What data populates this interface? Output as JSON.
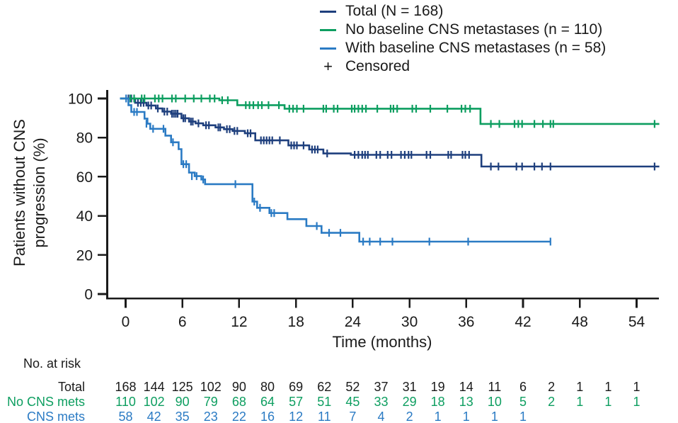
{
  "chart_data": {
    "type": "line",
    "subtype": "kaplan-meier-step",
    "title": "",
    "xlabel": "Time (months)",
    "ylabel": "Patients without CNS progression (%)",
    "ylabel_lines": [
      "Patients without CNS",
      "progression (%)"
    ],
    "xlim": [
      0,
      56.5
    ],
    "ylim": [
      0,
      100
    ],
    "xticks": [
      0,
      6,
      12,
      18,
      24,
      30,
      36,
      42,
      48,
      54
    ],
    "yticks": [
      100,
      80,
      60,
      40,
      20,
      0
    ],
    "grid": false,
    "legend_position": "top-right",
    "axis_color": "#1a1a1a",
    "censored_label": "Censored",
    "censored_marker": "+",
    "series": [
      {
        "name": "Total (N = 168)",
        "color": "#1e3f7d",
        "steps": [
          [
            0,
            100
          ],
          [
            1.0,
            97.8
          ],
          [
            2.2,
            96.4
          ],
          [
            3.2,
            94.9
          ],
          [
            3.9,
            93.3
          ],
          [
            4.8,
            92.2
          ],
          [
            5.9,
            89.9
          ],
          [
            6.7,
            88.2
          ],
          [
            7.4,
            87.3
          ],
          [
            8.2,
            86.3
          ],
          [
            9.5,
            85.2
          ],
          [
            10.4,
            84.3
          ],
          [
            11.3,
            83.4
          ],
          [
            12.6,
            82.2
          ],
          [
            13.7,
            78.6
          ],
          [
            17.2,
            76.0
          ],
          [
            19.4,
            73.9
          ],
          [
            20.9,
            71.9
          ],
          [
            23.8,
            71.2
          ],
          [
            37.6,
            65.2
          ],
          [
            56.4,
            65.2
          ]
        ],
        "censors": [
          [
            0.3,
            100
          ],
          [
            0.6,
            100
          ],
          [
            1.3,
            97.8
          ],
          [
            1.6,
            97.8
          ],
          [
            1.9,
            97.8
          ],
          [
            2.4,
            96.4
          ],
          [
            2.7,
            96.4
          ],
          [
            3.4,
            94.9
          ],
          [
            4.1,
            93.3
          ],
          [
            4.4,
            93.3
          ],
          [
            4.9,
            92.2
          ],
          [
            5.1,
            92.2
          ],
          [
            5.3,
            92.2
          ],
          [
            5.5,
            92.2
          ],
          [
            6.1,
            89.9
          ],
          [
            6.3,
            89.9
          ],
          [
            6.9,
            88.2
          ],
          [
            7.1,
            88.2
          ],
          [
            7.7,
            87.3
          ],
          [
            8.5,
            86.3
          ],
          [
            8.8,
            86.3
          ],
          [
            9.8,
            85.2
          ],
          [
            10.0,
            85.2
          ],
          [
            10.7,
            84.3
          ],
          [
            11.0,
            84.3
          ],
          [
            11.5,
            83.4
          ],
          [
            11.8,
            83.4
          ],
          [
            12.9,
            82.2
          ],
          [
            13.2,
            82.2
          ],
          [
            14.3,
            78.6
          ],
          [
            14.6,
            78.6
          ],
          [
            14.9,
            78.6
          ],
          [
            15.2,
            78.6
          ],
          [
            15.5,
            78.6
          ],
          [
            16.3,
            78.6
          ],
          [
            17.5,
            76.0
          ],
          [
            17.8,
            76.0
          ],
          [
            18.1,
            76.0
          ],
          [
            18.8,
            76.0
          ],
          [
            19.7,
            73.9
          ],
          [
            20.0,
            73.9
          ],
          [
            20.3,
            73.9
          ],
          [
            21.3,
            71.9
          ],
          [
            24.2,
            71.2
          ],
          [
            24.6,
            71.2
          ],
          [
            25.0,
            71.2
          ],
          [
            25.3,
            71.2
          ],
          [
            25.6,
            71.2
          ],
          [
            26.5,
            71.2
          ],
          [
            26.9,
            71.2
          ],
          [
            27.7,
            71.2
          ],
          [
            28.1,
            71.2
          ],
          [
            29.1,
            71.2
          ],
          [
            29.5,
            71.2
          ],
          [
            29.9,
            71.2
          ],
          [
            30.2,
            71.2
          ],
          [
            31.8,
            71.2
          ],
          [
            32.2,
            71.2
          ],
          [
            34.1,
            71.2
          ],
          [
            34.4,
            71.2
          ],
          [
            35.6,
            71.2
          ],
          [
            35.9,
            71.2
          ],
          [
            36.3,
            71.2
          ],
          [
            38.6,
            65.2
          ],
          [
            39.4,
            65.2
          ],
          [
            41.3,
            65.2
          ],
          [
            41.9,
            65.2
          ],
          [
            43.2,
            65.2
          ],
          [
            44.0,
            65.2
          ],
          [
            44.9,
            65.2
          ],
          [
            55.9,
            65.2
          ]
        ]
      },
      {
        "name": "No baseline CNS metastases (n = 110)",
        "color": "#0d9e60",
        "steps": [
          [
            0,
            100
          ],
          [
            9.9,
            99.1
          ],
          [
            11.8,
            96.6
          ],
          [
            16.8,
            94.8
          ],
          [
            37.5,
            87.0
          ],
          [
            56.4,
            87.0
          ]
        ],
        "censors": [
          [
            0.5,
            100
          ],
          [
            0.9,
            100
          ],
          [
            1.7,
            100
          ],
          [
            2.0,
            100
          ],
          [
            3.1,
            100
          ],
          [
            3.5,
            100
          ],
          [
            3.9,
            100
          ],
          [
            4.9,
            100
          ],
          [
            5.3,
            100
          ],
          [
            6.3,
            100
          ],
          [
            7.2,
            100
          ],
          [
            8.0,
            100
          ],
          [
            8.9,
            100
          ],
          [
            9.4,
            100
          ],
          [
            10.2,
            99.1
          ],
          [
            10.8,
            99.1
          ],
          [
            12.7,
            96.6
          ],
          [
            13.1,
            96.6
          ],
          [
            13.5,
            96.6
          ],
          [
            14.0,
            96.6
          ],
          [
            14.4,
            96.6
          ],
          [
            15.1,
            96.6
          ],
          [
            16.2,
            96.6
          ],
          [
            17.3,
            94.8
          ],
          [
            17.7,
            94.8
          ],
          [
            18.1,
            94.8
          ],
          [
            18.8,
            94.8
          ],
          [
            20.9,
            94.8
          ],
          [
            21.2,
            94.8
          ],
          [
            22.0,
            94.8
          ],
          [
            22.4,
            94.8
          ],
          [
            23.9,
            94.8
          ],
          [
            24.2,
            94.8
          ],
          [
            24.6,
            94.8
          ],
          [
            25.0,
            94.8
          ],
          [
            25.4,
            94.8
          ],
          [
            26.6,
            94.8
          ],
          [
            28.0,
            94.8
          ],
          [
            28.3,
            94.8
          ],
          [
            28.7,
            94.8
          ],
          [
            30.3,
            94.8
          ],
          [
            30.7,
            94.8
          ],
          [
            32.2,
            94.8
          ],
          [
            34.0,
            94.8
          ],
          [
            35.5,
            94.8
          ],
          [
            35.9,
            94.8
          ],
          [
            36.4,
            94.8
          ],
          [
            38.6,
            87.0
          ],
          [
            39.5,
            87.0
          ],
          [
            41.1,
            87.0
          ],
          [
            41.5,
            87.0
          ],
          [
            41.9,
            87.0
          ],
          [
            43.2,
            87.0
          ],
          [
            44.1,
            87.0
          ],
          [
            44.9,
            87.0
          ],
          [
            45.2,
            87.0
          ],
          [
            55.9,
            87.0
          ]
        ]
      },
      {
        "name": "With baseline CNS metastases (n = 58)",
        "color": "#2b7bc4",
        "steps": [
          [
            0,
            100
          ],
          [
            0.3,
            96.6
          ],
          [
            0.6,
            93.1
          ],
          [
            2.0,
            89.7
          ],
          [
            2.3,
            87.1
          ],
          [
            2.6,
            84.5
          ],
          [
            4.2,
            81.0
          ],
          [
            4.8,
            77.6
          ],
          [
            5.6,
            74.1
          ],
          [
            5.9,
            66.4
          ],
          [
            6.7,
            62.1
          ],
          [
            7.3,
            60.3
          ],
          [
            8.0,
            58.6
          ],
          [
            8.4,
            56.2
          ],
          [
            13.4,
            47.3
          ],
          [
            13.9,
            44.1
          ],
          [
            15.2,
            41.4
          ],
          [
            17.1,
            38.3
          ],
          [
            19.1,
            34.8
          ],
          [
            20.7,
            31.3
          ],
          [
            24.7,
            26.8
          ],
          [
            44.9,
            26.8
          ]
        ],
        "censors": [
          [
            0.05,
            100
          ],
          [
            0.9,
            93.1
          ],
          [
            1.2,
            93.1
          ],
          [
            2.2,
            87.1
          ],
          [
            2.9,
            84.5
          ],
          [
            4.0,
            84.5
          ],
          [
            5.0,
            77.6
          ],
          [
            6.1,
            66.4
          ],
          [
            6.4,
            66.4
          ],
          [
            7.0,
            60.3
          ],
          [
            7.5,
            60.3
          ],
          [
            8.2,
            58.6
          ],
          [
            11.6,
            56.2
          ],
          [
            13.6,
            47.3
          ],
          [
            14.2,
            44.1
          ],
          [
            15.4,
            41.4
          ],
          [
            15.7,
            41.4
          ],
          [
            20.2,
            34.8
          ],
          [
            21.5,
            31.3
          ],
          [
            22.7,
            31.3
          ],
          [
            25.1,
            26.8
          ],
          [
            25.8,
            26.8
          ],
          [
            26.9,
            26.8
          ],
          [
            28.2,
            26.8
          ],
          [
            32.1,
            26.8
          ],
          [
            36.2,
            26.8
          ],
          [
            44.9,
            26.8
          ]
        ]
      }
    ],
    "at_risk": {
      "title": "No. at risk",
      "months": [
        0,
        3,
        6,
        9,
        12,
        15,
        18,
        21,
        24,
        27,
        30,
        33,
        36,
        39,
        42,
        45,
        48,
        51,
        54
      ],
      "rows": [
        {
          "label": "Total",
          "color": "#1a1a1a",
          "values": [
            168,
            144,
            125,
            102,
            90,
            80,
            69,
            62,
            52,
            37,
            31,
            19,
            14,
            11,
            6,
            2,
            1,
            1,
            1
          ]
        },
        {
          "label": "No CNS mets",
          "color": "#0d9e60",
          "values": [
            110,
            102,
            90,
            79,
            68,
            64,
            57,
            51,
            45,
            33,
            29,
            18,
            13,
            10,
            5,
            2,
            1,
            1,
            1
          ]
        },
        {
          "label": "CNS mets",
          "color": "#2b7bc4",
          "values": [
            58,
            42,
            35,
            23,
            22,
            16,
            12,
            11,
            7,
            4,
            2,
            1,
            1,
            1,
            1
          ]
        }
      ]
    }
  }
}
